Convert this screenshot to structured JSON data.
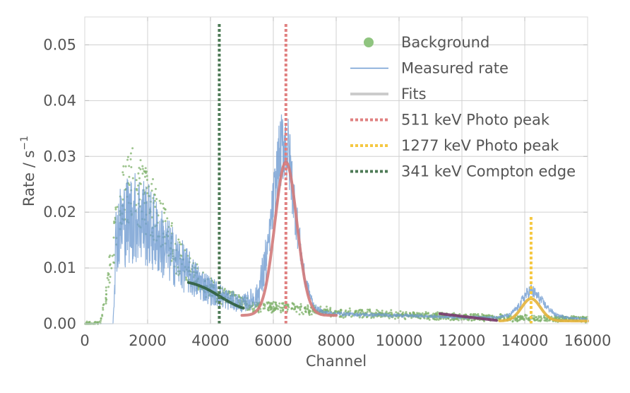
{
  "chart_data": {
    "type": "line",
    "title": "",
    "xlabel": "Channel",
    "ylabel": "Rate / s",
    "ylabel_superscript": "−1",
    "xlim": [
      0,
      16000
    ],
    "ylim": [
      0,
      0.055
    ],
    "xticks": [
      0,
      2000,
      4000,
      6000,
      8000,
      10000,
      12000,
      14000,
      16000
    ],
    "xtick_labels": [
      "0",
      "2000",
      "4000",
      "6000",
      "8000",
      "10000",
      "12000",
      "14000",
      "16000"
    ],
    "yticks": [
      0.0,
      0.01,
      0.02,
      0.03,
      0.04,
      0.05
    ],
    "ytick_labels": [
      "0.00",
      "0.01",
      "0.02",
      "0.03",
      "0.04",
      "0.05"
    ],
    "grid": true,
    "legend_position": "top-right",
    "colors": {
      "background": "#7fb26b",
      "measured": "#6f9bd1",
      "fits_legend": "#cccccc",
      "fit_compton": "#2e5e3c",
      "fit_511": "#d17a7a",
      "fit_mid": "#7a3a6e",
      "fit_1277": "#e3b23c",
      "line_511": "#e08080",
      "line_1277": "#f5c842",
      "line_341": "#4d7a55"
    },
    "legend": [
      {
        "label": "Background",
        "kind": "marker",
        "color": "#8fc47f"
      },
      {
        "label": "Measured rate",
        "kind": "line",
        "color": "#6f9bd1"
      },
      {
        "label": "Fits",
        "kind": "thick",
        "color": "#cccccc"
      },
      {
        "label": "511 keV Photo peak",
        "kind": "dotted",
        "color": "#e08080"
      },
      {
        "label": "1277 keV Photo peak",
        "kind": "dotted",
        "color": "#f5c842"
      },
      {
        "label": "341 keV Compton edge",
        "kind": "dotted",
        "color": "#4d7a55"
      }
    ],
    "series": [
      {
        "name": "Background",
        "kind": "scatter",
        "x": [
          0,
          500,
          700,
          900,
          1100,
          1300,
          1500,
          1700,
          2000,
          2300,
          2600,
          3000,
          3400,
          3800,
          4200,
          4600,
          5000,
          5500,
          6000,
          6500,
          7000,
          7500,
          8000,
          9000,
          10000,
          11000,
          12000,
          13000,
          14000,
          14200,
          15000,
          16000
        ],
        "y": [
          0.0,
          0.0,
          0.006,
          0.014,
          0.021,
          0.024,
          0.025,
          0.024,
          0.022,
          0.019,
          0.016,
          0.012,
          0.009,
          0.007,
          0.0055,
          0.0045,
          0.004,
          0.003,
          0.003,
          0.003,
          0.0025,
          0.0022,
          0.002,
          0.0018,
          0.0016,
          0.0014,
          0.0012,
          0.0011,
          0.001,
          0.001,
          0.0009,
          0.0008
        ]
      },
      {
        "name": "Measured rate",
        "kind": "line",
        "x": [
          0,
          900,
          1000,
          1200,
          1500,
          1800,
          2100,
          2500,
          3000,
          3500,
          4000,
          4500,
          5000,
          5500,
          5800,
          6000,
          6200,
          6350,
          6500,
          6700,
          7000,
          7300,
          7600,
          8000,
          9000,
          10000,
          11000,
          12000,
          13000,
          13500,
          13800,
          14000,
          14200,
          14400,
          14700,
          15000,
          15500,
          16000
        ],
        "y": [
          0.0,
          0.0,
          0.016,
          0.018,
          0.019,
          0.019,
          0.017,
          0.014,
          0.011,
          0.008,
          0.006,
          0.0045,
          0.0035,
          0.005,
          0.012,
          0.022,
          0.03,
          0.033,
          0.03,
          0.02,
          0.008,
          0.003,
          0.002,
          0.0018,
          0.0016,
          0.0015,
          0.0013,
          0.0012,
          0.0011,
          0.0015,
          0.003,
          0.005,
          0.006,
          0.005,
          0.003,
          0.0015,
          0.001,
          0.0008
        ]
      }
    ],
    "fits": [
      {
        "name": "Compton edge fit",
        "x0": 3300,
        "x1": 5050,
        "shape": "edge",
        "y_left": 0.008,
        "y_right": 0.0018,
        "center": 4300,
        "width": 450
      },
      {
        "name": "511 keV fit",
        "x0": 5000,
        "x1": 8000,
        "shape": "gauss",
        "amp": 0.0275,
        "center": 6400,
        "sigma": 350,
        "base": 0.0015
      },
      {
        "name": "mid fit",
        "x0": 11300,
        "x1": 13100,
        "shape": "linear",
        "y_left": 0.0018,
        "y_right": 0.0006
      },
      {
        "name": "1277 keV fit",
        "x0": 13200,
        "x1": 16000,
        "shape": "gauss",
        "amp": 0.004,
        "center": 14200,
        "sigma": 300,
        "base": 0.0005
      }
    ],
    "vlines": [
      {
        "name": "511 keV Photo peak",
        "x": 6400,
        "y_top": 0.054
      },
      {
        "name": "1277 keV Photo peak",
        "x": 14200,
        "y_top": 0.0195
      },
      {
        "name": "341 keV Compton edge",
        "x": 4280,
        "y_top": 0.054
      }
    ]
  }
}
